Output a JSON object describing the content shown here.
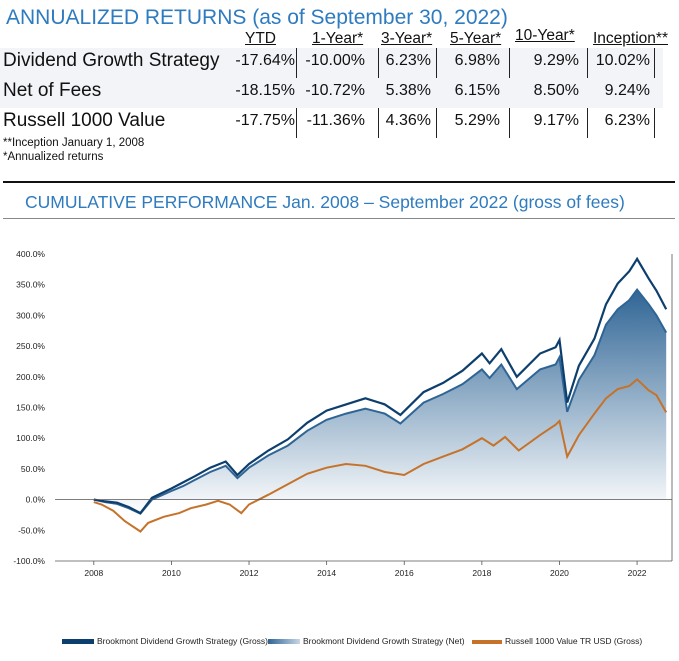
{
  "returns": {
    "title": "ANNUALIZED RETURNS (as of September 30, 2022)",
    "columns": [
      "YTD",
      "1-Year*",
      "3-Year*",
      "5-Year*",
      "10-Year*",
      "Inception**"
    ],
    "rows": [
      {
        "name": "Dividend Growth Strategy",
        "values": [
          "-17.64%",
          "-10.00%",
          "6.23%",
          "6.98%",
          "9.29%",
          "10.02%"
        ]
      },
      {
        "name": "Net of Fees",
        "values": [
          "-18.15%",
          "-10.72%",
          "5.38%",
          "6.15%",
          "8.50%",
          "9.24%"
        ]
      },
      {
        "name": "Russell 1000 Value",
        "values": [
          "-17.75%",
          "-11.36%",
          "4.36%",
          "5.29%",
          "9.17%",
          "6.23%"
        ]
      }
    ],
    "notes": [
      "**Inception January 1, 2008",
      "*Annualized returns"
    ]
  },
  "cumulative": {
    "title": "CUMULATIVE PERFORMANCE Jan. 2008 – September 2022 (gross of fees)"
  },
  "colors": {
    "gross": "#0d3f6e",
    "net_top": "#2f6595",
    "net_bottom": "#ffffff",
    "russell": "#c5732b",
    "accent": "#2e7bbf"
  },
  "chart_data": {
    "type": "area",
    "x_unit": "year",
    "xlim": [
      2007.0,
      2022.9
    ],
    "ylim": [
      -100,
      400
    ],
    "yticks": [
      -100,
      -50,
      0,
      50,
      100,
      150,
      200,
      250,
      300,
      350,
      400
    ],
    "ytick_labels": [
      "-100.0%",
      "-50.0%",
      "0.0%",
      "50.0%",
      "100.0%",
      "150.0%",
      "200.0%",
      "250.0%",
      "300.0%",
      "350.0%",
      "400.0%"
    ],
    "xticks": [
      2008,
      2010,
      2012,
      2014,
      2016,
      2018,
      2020,
      2022
    ],
    "xtick_labels": [
      "2008",
      "2010",
      "2012",
      "2014",
      "2016",
      "2018",
      "2020",
      "2022"
    ],
    "series": [
      {
        "name": "Brookmont Dividend Growth Strategy (Gross)",
        "x": [
          2008.0,
          2008.3,
          2008.6,
          2008.9,
          2009.2,
          2009.5,
          2010.0,
          2010.3,
          2010.6,
          2011.0,
          2011.4,
          2011.7,
          2012.0,
          2012.5,
          2013.0,
          2013.5,
          2014.0,
          2014.5,
          2015.0,
          2015.5,
          2015.9,
          2016.5,
          2017.0,
          2017.5,
          2018.0,
          2018.2,
          2018.5,
          2018.9,
          2019.5,
          2019.9,
          2020.0,
          2020.2,
          2020.5,
          2020.9,
          2021.2,
          2021.5,
          2021.8,
          2022.0,
          2022.3,
          2022.5,
          2022.75
        ],
        "values": [
          0,
          -3,
          -5,
          -12,
          -22,
          3,
          18,
          28,
          38,
          52,
          62,
          40,
          58,
          80,
          98,
          125,
          145,
          155,
          165,
          155,
          138,
          175,
          190,
          210,
          238,
          222,
          245,
          200,
          238,
          248,
          260,
          158,
          218,
          262,
          318,
          352,
          372,
          392,
          360,
          340,
          310
        ]
      },
      {
        "name": "Brookmont Dividend Growth Strategy (Net)",
        "x": [
          2008.0,
          2008.3,
          2008.6,
          2008.9,
          2009.2,
          2009.5,
          2010.0,
          2010.3,
          2010.6,
          2011.0,
          2011.4,
          2011.7,
          2012.0,
          2012.5,
          2013.0,
          2013.5,
          2014.0,
          2014.5,
          2015.0,
          2015.5,
          2015.9,
          2016.5,
          2017.0,
          2017.5,
          2018.0,
          2018.2,
          2018.5,
          2018.9,
          2019.5,
          2019.9,
          2020.0,
          2020.2,
          2020.5,
          2020.9,
          2021.2,
          2021.5,
          2021.8,
          2022.0,
          2022.3,
          2022.5,
          2022.75
        ],
        "values": [
          0,
          -4,
          -7,
          -14,
          -23,
          0,
          14,
          22,
          32,
          45,
          55,
          35,
          52,
          72,
          88,
          112,
          130,
          140,
          148,
          140,
          124,
          158,
          172,
          188,
          212,
          198,
          220,
          180,
          212,
          220,
          232,
          143,
          195,
          235,
          285,
          310,
          325,
          342,
          318,
          300,
          272
        ]
      },
      {
        "name": "Russell 1000 Value TR USD (Gross)",
        "x": [
          2008.0,
          2008.2,
          2008.5,
          2008.8,
          2009.2,
          2009.4,
          2009.8,
          2010.2,
          2010.5,
          2010.9,
          2011.2,
          2011.5,
          2011.8,
          2012.0,
          2012.5,
          2013.0,
          2013.5,
          2014.0,
          2014.5,
          2015.0,
          2015.5,
          2016.0,
          2016.5,
          2017.0,
          2017.5,
          2018.0,
          2018.3,
          2018.6,
          2018.95,
          2019.5,
          2019.9,
          2020.0,
          2020.2,
          2020.5,
          2020.9,
          2021.2,
          2021.5,
          2021.8,
          2022.0,
          2022.3,
          2022.5,
          2022.75
        ],
        "values": [
          -4,
          -8,
          -18,
          -35,
          -52,
          -38,
          -28,
          -22,
          -14,
          -8,
          -2,
          -8,
          -22,
          -8,
          8,
          25,
          42,
          52,
          58,
          55,
          45,
          40,
          58,
          70,
          82,
          100,
          88,
          102,
          80,
          105,
          122,
          128,
          70,
          105,
          140,
          165,
          180,
          185,
          196,
          178,
          170,
          142
        ]
      }
    ]
  },
  "legend": {
    "gross": "Brookmont Dividend Growth Strategy (Gross)",
    "net": "Brookmont Dividend Growth Strategy (Net)",
    "russell": "Russell 1000 Value TR USD (Gross)"
  }
}
